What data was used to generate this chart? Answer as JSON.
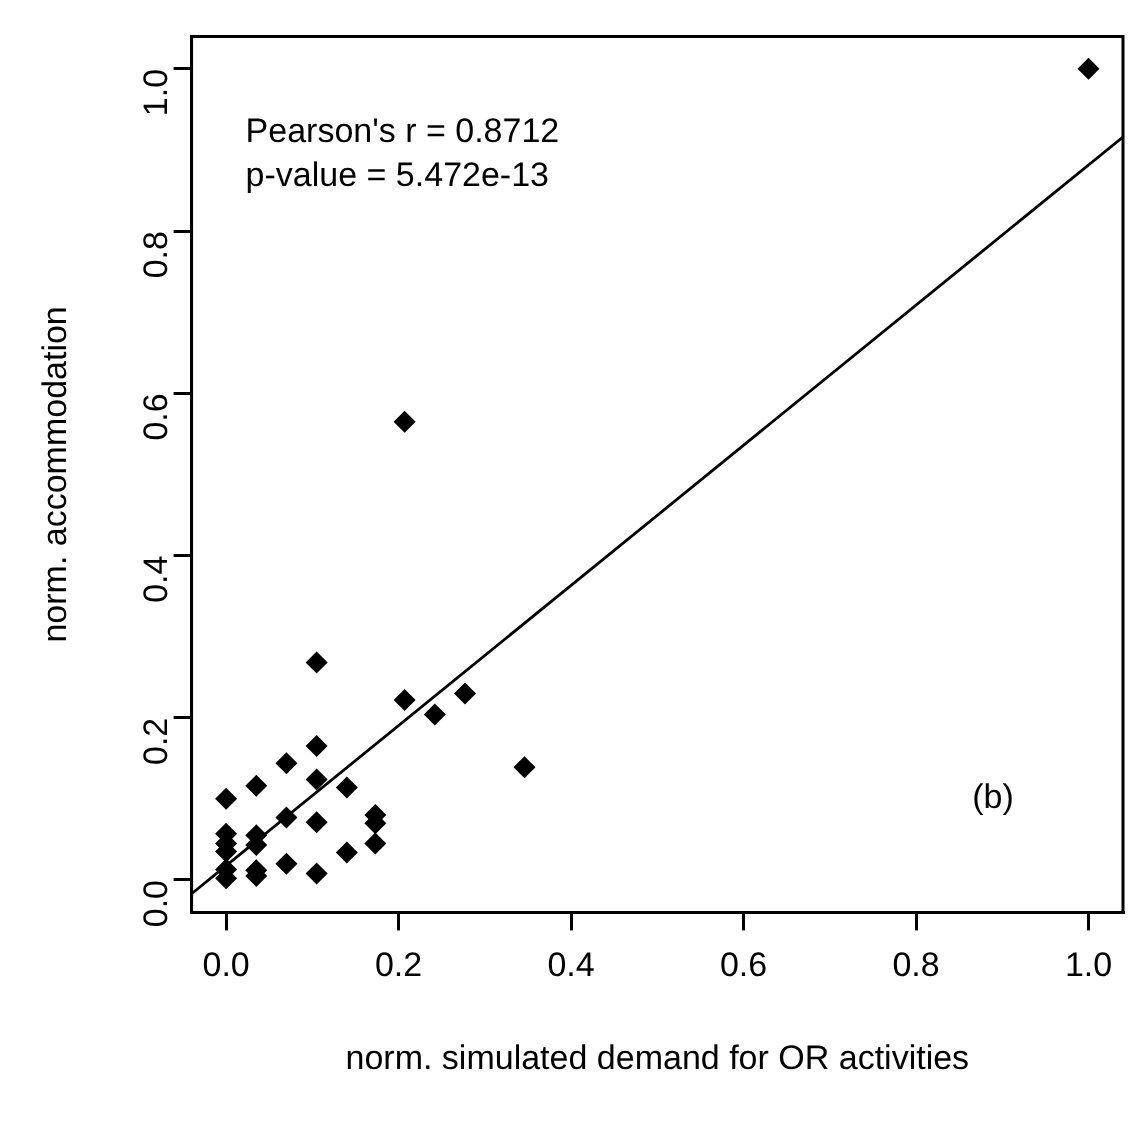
{
  "chart_data": {
    "type": "scatter",
    "xlabel": "norm. simulated demand for OR activities",
    "ylabel": "norm. accommodation",
    "annotations": [
      "Pearson's r = 0.8712",
      "p-value = 5.472e-13",
      "(b)"
    ],
    "xlim": [
      -0.04,
      1.04
    ],
    "ylim": [
      -0.04,
      1.04
    ],
    "xticks": [
      {
        "value": 0,
        "label": "0.0"
      },
      0.2,
      0.4,
      0.6,
      0.8,
      {
        "value": 1,
        "label": "1.0"
      }
    ],
    "yticks": [
      {
        "value": 0,
        "label": "0.0"
      },
      0.2,
      0.4,
      0.6,
      0.8,
      {
        "value": 1,
        "label": "1.0"
      }
    ],
    "grid": false,
    "legend": false,
    "marker": "diamond",
    "series": [
      {
        "type": "scatter",
        "color": "#000000",
        "x": [
          0,
          0,
          0,
          0,
          0,
          0,
          0.035,
          0.035,
          0.035,
          0.035,
          0.035,
          0.07,
          0.07,
          0.07,
          0.105,
          0.105,
          0.105,
          0.105,
          0.105,
          0.14,
          0.14,
          0.173,
          0.173,
          0.173,
          0.207,
          0.207,
          0.242,
          0.277,
          0.346,
          1
        ],
        "values": [
          0.1,
          0.057,
          0.045,
          0.035,
          0.013,
          0.002,
          0.116,
          0.055,
          0.043,
          0.012,
          0.005,
          0.144,
          0.077,
          0.02,
          0.268,
          0.165,
          0.124,
          0.071,
          0.008,
          0.114,
          0.034,
          0.08,
          0.07,
          0.045,
          0.222,
          0.565,
          0.204,
          0.23,
          0.139,
          1
        ]
      },
      {
        "type": "line",
        "color": "#000000",
        "line_style": "solid",
        "marker": "none",
        "x": [
          -0.04,
          1.04
        ],
        "values": [
          -0.017,
          0.916
        ]
      }
    ]
  }
}
